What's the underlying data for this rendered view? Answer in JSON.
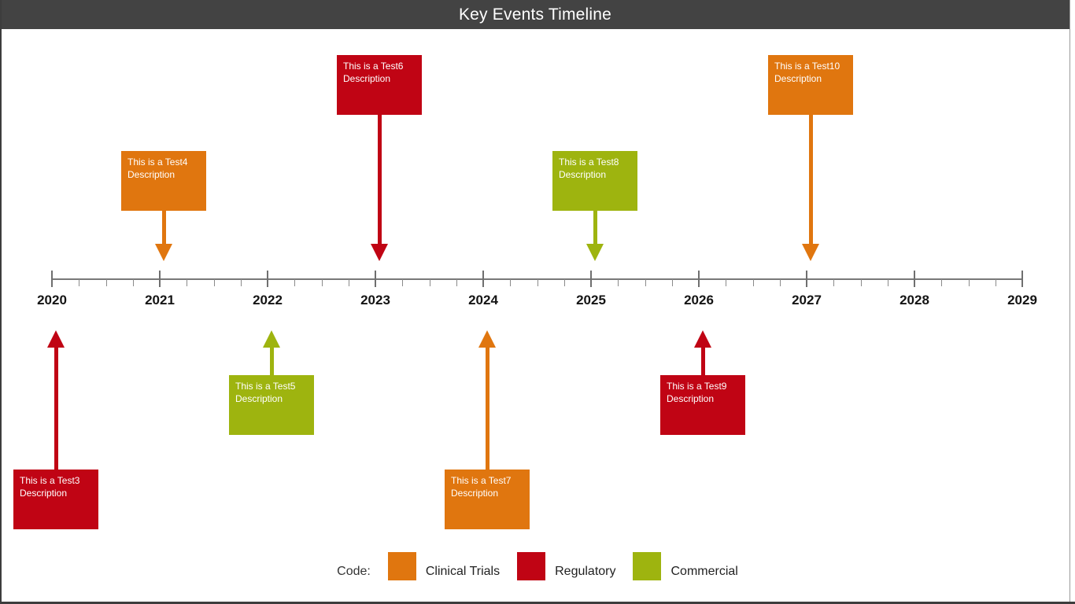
{
  "header": {
    "title": "Key Events Timeline"
  },
  "chart_data": {
    "type": "timeline",
    "title": "Key Events Timeline",
    "axis": {
      "start_year": 2020,
      "end_year": 2029,
      "tick_interval_years": 1,
      "minor_ticks_per_interval": 3,
      "tick_labels": [
        "2020",
        "2021",
        "2022",
        "2023",
        "2024",
        "2025",
        "2026",
        "2027",
        "2028",
        "2029"
      ]
    },
    "legend": {
      "label": "Code:",
      "position": "bottom-center",
      "entries": [
        {
          "name": "Clinical Trials",
          "color": "#E0760F"
        },
        {
          "name": "Regulatory",
          "color": "#C00414"
        },
        {
          "name": "Commercial",
          "color": "#9EB40F"
        }
      ]
    },
    "events": [
      {
        "label": "This is a Test3 Description",
        "year": 2020,
        "category": "Regulatory",
        "side": "below",
        "tier": "far"
      },
      {
        "label": "This is a Test4 Description",
        "year": 2021,
        "category": "Clinical Trials",
        "side": "above",
        "tier": "near"
      },
      {
        "label": "This is a Test5 Description",
        "year": 2022,
        "category": "Commercial",
        "side": "below",
        "tier": "near"
      },
      {
        "label": "This is a Test6 Description",
        "year": 2023,
        "category": "Regulatory",
        "side": "above",
        "tier": "far"
      },
      {
        "label": "This is a Test7 Description",
        "year": 2024,
        "category": "Clinical Trials",
        "side": "below",
        "tier": "far"
      },
      {
        "label": "This is a Test8 Description",
        "year": 2025,
        "category": "Commercial",
        "side": "above",
        "tier": "near"
      },
      {
        "label": "This is a Test9 Description",
        "year": 2026,
        "category": "Regulatory",
        "side": "below",
        "tier": "near"
      },
      {
        "label": "This is a Test10 Description",
        "year": 2027,
        "category": "Clinical Trials",
        "side": "above",
        "tier": "far"
      }
    ]
  }
}
